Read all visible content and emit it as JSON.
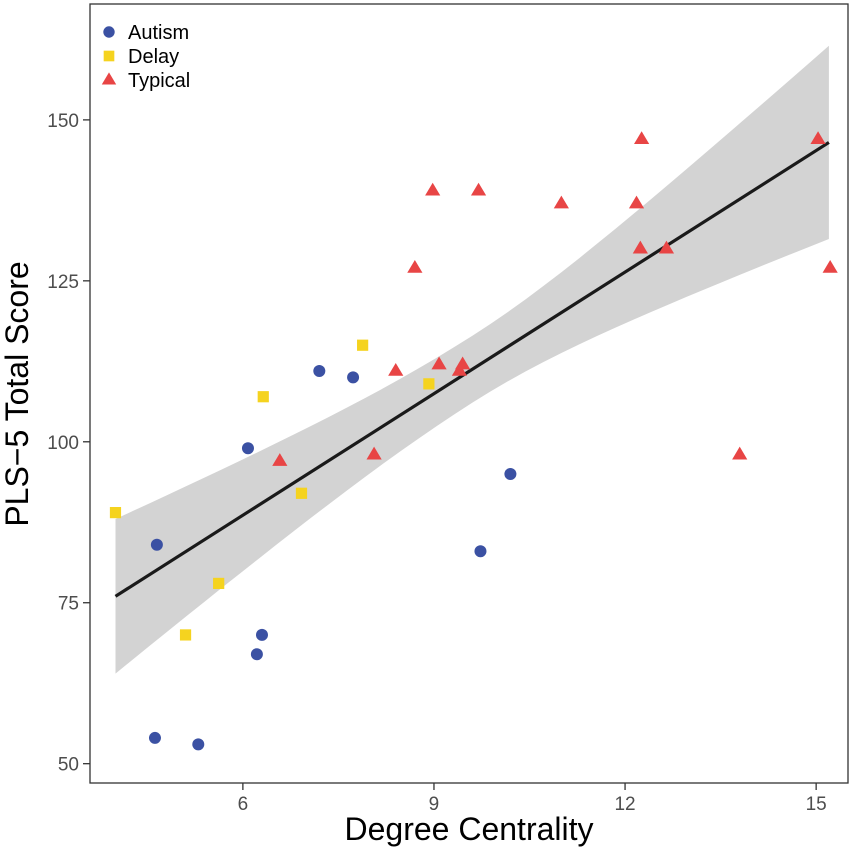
{
  "chart_data": {
    "type": "scatter",
    "title": "",
    "xlabel": "Degree Centrality",
    "ylabel": "PLS−5 Total Score",
    "xlim": [
      3.6,
      15.5
    ],
    "ylim": [
      47,
      168
    ],
    "xticks": [
      6,
      9,
      12,
      15
    ],
    "yticks": [
      50,
      75,
      100,
      125,
      150
    ],
    "grid": false,
    "legend_position": "top-left",
    "series": [
      {
        "name": "Autism",
        "marker": "circle",
        "color": "#3B51A3",
        "points": [
          [
            4.65,
            84
          ],
          [
            4.62,
            54
          ],
          [
            5.3,
            53
          ],
          [
            6.08,
            99
          ],
          [
            6.22,
            67
          ],
          [
            6.3,
            70
          ],
          [
            7.2,
            111
          ],
          [
            7.73,
            110
          ],
          [
            9.73,
            83
          ],
          [
            10.2,
            95
          ]
        ]
      },
      {
        "name": "Delay",
        "marker": "square",
        "color": "#F5D31F",
        "points": [
          [
            4.0,
            89
          ],
          [
            5.1,
            70
          ],
          [
            5.62,
            78
          ],
          [
            6.32,
            107
          ],
          [
            6.92,
            92
          ],
          [
            7.88,
            115
          ],
          [
            8.92,
            109
          ]
        ]
      },
      {
        "name": "Typical",
        "marker": "triangle",
        "color": "#E84545",
        "points": [
          [
            6.58,
            97
          ],
          [
            8.06,
            98
          ],
          [
            8.4,
            111
          ],
          [
            8.7,
            127
          ],
          [
            8.98,
            139
          ],
          [
            9.08,
            112
          ],
          [
            9.4,
            111
          ],
          [
            9.45,
            112
          ],
          [
            9.7,
            139
          ],
          [
            11.0,
            137
          ],
          [
            12.18,
            137
          ],
          [
            12.24,
            130
          ],
          [
            12.26,
            147
          ],
          [
            12.65,
            130
          ],
          [
            13.8,
            98
          ],
          [
            15.03,
            147
          ],
          [
            15.22,
            127
          ]
        ]
      }
    ],
    "fit": {
      "x": [
        4.0,
        15.2
      ],
      "y": [
        76,
        146.5
      ],
      "ci_lower": [
        64,
        131.5
      ],
      "ci_upper": [
        88,
        161.5
      ],
      "color": "#1a1a1a",
      "band_color": "#D3D3D3"
    }
  }
}
